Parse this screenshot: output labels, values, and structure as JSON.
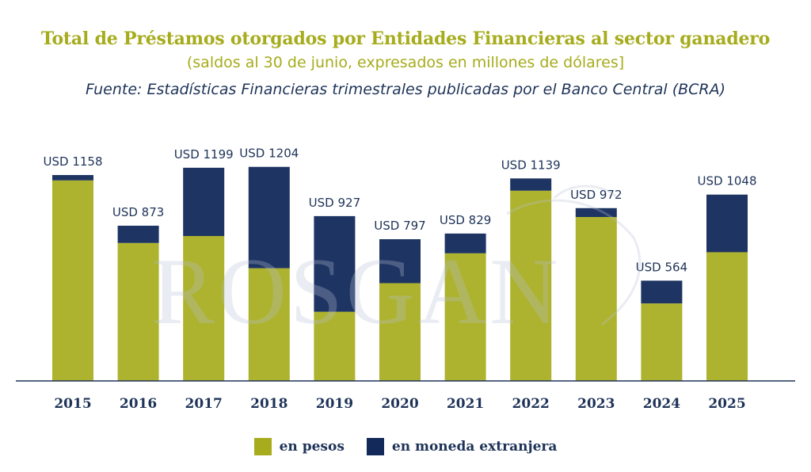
{
  "colors": {
    "pesos": "#a6ac1c",
    "foreign": "#12295a",
    "axis": "#1e3358",
    "watermark": "#b9bfd6"
  },
  "header": {
    "title": "Total de Préstamos otorgados por Entidades Financieras al sector ganadero",
    "subtitle": "(saldos al 30 de junio, expresados en millones de dólares]",
    "source": "Fuente: Estadísticas Financieras trimestrales publicadas por el Banco Central (BCRA)"
  },
  "watermark": {
    "text": "ROSGAN"
  },
  "legend": {
    "pesos_label": "en pesos",
    "foreign_label": "en moneda extranjera"
  },
  "chart_data": {
    "type": "bar",
    "stacked": true,
    "title": "Total de Préstamos otorgados por Entidades Financieras al sector ganadero",
    "subtitle": "(saldos al 30 de junio, expresados en millones de dólares]",
    "categories": [
      "2015",
      "2016",
      "2017",
      "2018",
      "2019",
      "2020",
      "2021",
      "2022",
      "2023",
      "2024",
      "2025"
    ],
    "totals_labels": [
      "USD 1158",
      "USD 873",
      "USD 1199",
      "USD 1204",
      "USD 927",
      "USD 797",
      "USD 829",
      "USD 1139",
      "USD 972",
      "USD 564",
      "USD 1048"
    ],
    "series": [
      {
        "name": "en pesos",
        "values": [
          1128,
          776,
          815,
          634,
          389,
          550,
          718,
          1070,
          922,
          436,
          724
        ]
      },
      {
        "name": "en moneda extranjera",
        "values": [
          30,
          97,
          384,
          570,
          538,
          247,
          111,
          69,
          50,
          128,
          324
        ]
      }
    ],
    "ylim": [
      0,
      1300
    ],
    "grid": false,
    "legend_position": "bottom"
  }
}
